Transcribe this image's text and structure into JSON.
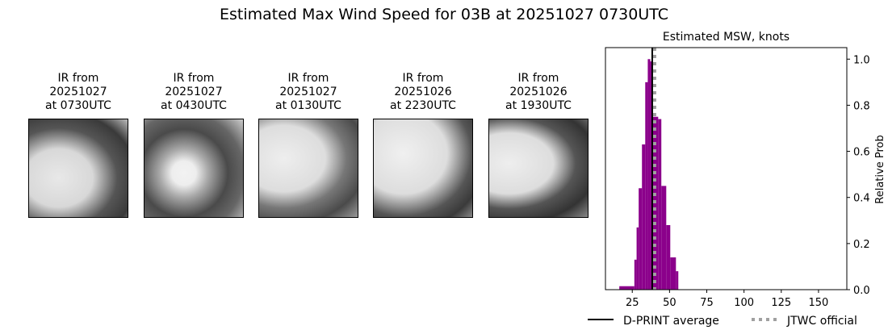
{
  "title": "Estimated Max Wind Speed for 03B at 20251027 0730UTC",
  "ir_panels": [
    {
      "line1": "IR from",
      "line2": "20251027",
      "line3": "at 0730UTC"
    },
    {
      "line1": "IR from",
      "line2": "20251027",
      "line3": "at 0430UTC"
    },
    {
      "line1": "IR from",
      "line2": "20251027",
      "line3": "at 0130UTC"
    },
    {
      "line1": "IR from",
      "line2": "20251026",
      "line3": "at 2230UTC"
    },
    {
      "line1": "IR from",
      "line2": "20251026",
      "line3": "at 1930UTC"
    }
  ],
  "chart_data": {
    "type": "bar",
    "title": "Estimated MSW, knots",
    "xlabel": "",
    "ylabel": "Relative Prob",
    "xlim": [
      7,
      169
    ],
    "ylim": [
      0,
      1.05
    ],
    "xticks": [
      25,
      50,
      75,
      100,
      125,
      150
    ],
    "yticks": [
      "0.0",
      "0.2",
      "0.4",
      "0.6",
      "0.8",
      "1.0"
    ],
    "y_axis_side": "right",
    "bar_color": "#8b008b",
    "bins": [
      {
        "left": 16.3,
        "right": 26.4,
        "value": 0.015
      },
      {
        "left": 26.4,
        "right": 27.9,
        "value": 0.13
      },
      {
        "left": 27.9,
        "right": 29.3,
        "value": 0.27
      },
      {
        "left": 29.3,
        "right": 31.5,
        "value": 0.44
      },
      {
        "left": 31.5,
        "right": 33.7,
        "value": 0.63
      },
      {
        "left": 33.7,
        "right": 35.4,
        "value": 0.9
      },
      {
        "left": 35.4,
        "right": 37.1,
        "value": 1.0
      },
      {
        "left": 37.1,
        "right": 38.4,
        "value": 0.99
      },
      {
        "left": 38.4,
        "right": 42.4,
        "value": 0.75
      },
      {
        "left": 42.4,
        "right": 44.5,
        "value": 0.74
      },
      {
        "left": 44.5,
        "right": 47.8,
        "value": 0.45
      },
      {
        "left": 47.8,
        "right": 50.5,
        "value": 0.28
      },
      {
        "left": 50.5,
        "right": 54.3,
        "value": 0.14
      },
      {
        "left": 54.3,
        "right": 55.9,
        "value": 0.08
      }
    ],
    "lines": [
      {
        "name": "D-PRINT average",
        "x": 38.4,
        "color": "#000000",
        "style": "solid"
      },
      {
        "name": "JTWC official",
        "x": 40,
        "color": "#a0a0a0",
        "style": "dotted"
      }
    ],
    "legend": "bottom"
  }
}
